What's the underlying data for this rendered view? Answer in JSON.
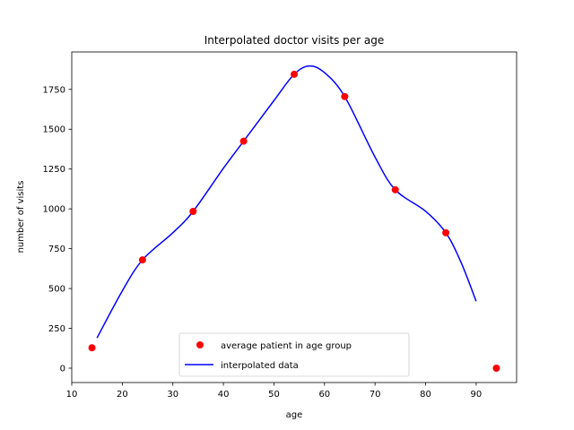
{
  "chart_data": {
    "type": "line",
    "title": "Interpolated doctor visits per age",
    "xlabel": "age",
    "ylabel": "number of visits",
    "xlim": [
      10,
      98
    ],
    "ylim": [
      -90,
      1985
    ],
    "x_ticks": [
      10,
      20,
      30,
      40,
      50,
      60,
      70,
      80,
      90
    ],
    "y_ticks": [
      0,
      250,
      500,
      750,
      1000,
      1250,
      1500,
      1750
    ],
    "grid": false,
    "legend_position": "bottom-center",
    "series": [
      {
        "name": "average patient in age group",
        "kind": "scatter",
        "color": "#ff0000",
        "x": [
          14,
          24,
          34,
          44,
          54,
          64,
          74,
          84,
          94
        ],
        "y": [
          128,
          680,
          984,
          1425,
          1845,
          1705,
          1120,
          850,
          0
        ]
      },
      {
        "name": "interpolated data",
        "kind": "line",
        "color": "#0000ff",
        "x": [
          15,
          20,
          24,
          30,
          34,
          40,
          44,
          50,
          54,
          57,
          60,
          64,
          70,
          74,
          80,
          84,
          87,
          90
        ],
        "y": [
          190,
          485,
          680,
          850,
          984,
          1255,
          1425,
          1680,
          1845,
          1897,
          1855,
          1705,
          1325,
          1120,
          985,
          850,
          665,
          420
        ]
      }
    ]
  }
}
